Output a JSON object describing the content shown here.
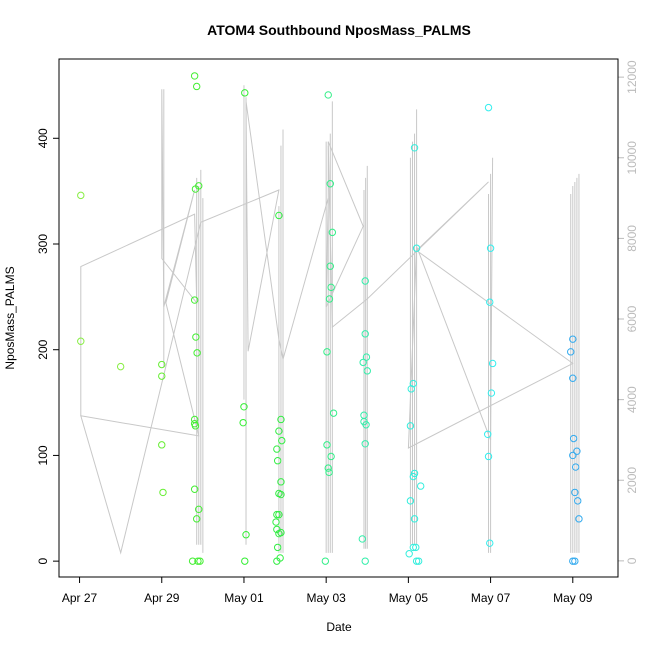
{
  "chart_data": {
    "type": "scatter",
    "title": "ATOM4 Southbound NposMass_PALMS",
    "xlabel": "Date",
    "ylabel": "NposMass_PALMS",
    "x_ticks": [
      {
        "label": "Apr 27",
        "value": 0
      },
      {
        "label": "Apr 29",
        "value": 2
      },
      {
        "label": "May 01",
        "value": 4
      },
      {
        "label": "May 03",
        "value": 6
      },
      {
        "label": "May 05",
        "value": 8
      },
      {
        "label": "May 07",
        "value": 10
      },
      {
        "label": "May 09",
        "value": 12
      }
    ],
    "y_ticks": [
      0,
      100,
      200,
      300,
      400
    ],
    "y2_ticks": [
      0,
      2000,
      4000,
      6000,
      8000,
      10000,
      12000
    ],
    "xlim": [
      -0.5,
      13.1
    ],
    "ylim": [
      -15,
      475
    ],
    "y2lim": [
      -400,
      12450
    ],
    "colors": {
      "axis": "#000000",
      "right_axis": "#bbbbbb",
      "line": "#c8c8c8"
    },
    "scatter_series": [
      {
        "color": "#88ee44",
        "points": [
          [
            0.03,
            346
          ],
          [
            0.03,
            208
          ],
          [
            1.0,
            184
          ]
        ]
      },
      {
        "color": "#66ee33",
        "points": [
          [
            2.0,
            186
          ],
          [
            2.0,
            175
          ],
          [
            2.0,
            110
          ],
          [
            2.03,
            65
          ]
        ]
      },
      {
        "color": "#44ee33",
        "points": [
          [
            2.8,
            459
          ],
          [
            2.85,
            449
          ],
          [
            2.82,
            352
          ],
          [
            2.9,
            355
          ],
          [
            2.8,
            247
          ],
          [
            2.83,
            212
          ],
          [
            2.86,
            197
          ],
          [
            2.8,
            134
          ],
          [
            2.8,
            130
          ],
          [
            2.82,
            128
          ],
          [
            2.8,
            68
          ],
          [
            2.85,
            40
          ],
          [
            2.9,
            49
          ],
          [
            2.75,
            0
          ],
          [
            2.88,
            0
          ],
          [
            2.93,
            0
          ]
        ]
      },
      {
        "color": "#33ee33",
        "points": [
          [
            4.02,
            443
          ],
          [
            4.0,
            146
          ],
          [
            3.98,
            131
          ],
          [
            4.05,
            25
          ],
          [
            4.02,
            0
          ]
        ]
      },
      {
        "color": "#33ee44",
        "points": [
          [
            4.85,
            327
          ],
          [
            4.9,
            134
          ],
          [
            4.85,
            123
          ],
          [
            4.8,
            106
          ],
          [
            4.82,
            95
          ],
          [
            4.92,
            114
          ],
          [
            4.9,
            75
          ],
          [
            4.85,
            64
          ],
          [
            4.9,
            63
          ],
          [
            4.8,
            44
          ],
          [
            4.85,
            44
          ],
          [
            4.78,
            37
          ],
          [
            4.8,
            30
          ],
          [
            4.85,
            26
          ],
          [
            4.9,
            27
          ],
          [
            4.82,
            13
          ],
          [
            4.88,
            3
          ],
          [
            4.8,
            0
          ]
        ]
      },
      {
        "color": "#33ee88",
        "points": [
          [
            6.05,
            441
          ],
          [
            6.1,
            357
          ],
          [
            6.15,
            311
          ],
          [
            6.1,
            279
          ],
          [
            6.12,
            259
          ],
          [
            6.08,
            248
          ],
          [
            6.02,
            198
          ],
          [
            6.18,
            140
          ],
          [
            6.02,
            110
          ],
          [
            6.12,
            99
          ],
          [
            6.05,
            88
          ],
          [
            6.07,
            84
          ],
          [
            5.98,
            0
          ]
        ]
      },
      {
        "color": "#33eeaa",
        "points": [
          [
            6.95,
            265
          ],
          [
            6.95,
            215
          ],
          [
            6.98,
            193
          ],
          [
            7.0,
            180
          ],
          [
            6.9,
            188
          ],
          [
            6.92,
            138
          ],
          [
            6.92,
            132
          ],
          [
            6.97,
            129
          ],
          [
            6.95,
            111
          ],
          [
            6.88,
            21
          ],
          [
            6.95,
            0
          ]
        ]
      },
      {
        "color": "#33eedd",
        "points": [
          [
            8.15,
            391
          ],
          [
            8.2,
            296
          ],
          [
            8.12,
            168
          ],
          [
            8.07,
            163
          ],
          [
            8.05,
            128
          ],
          [
            8.15,
            83
          ],
          [
            8.12,
            80
          ],
          [
            8.3,
            71
          ],
          [
            8.05,
            57
          ],
          [
            8.15,
            40
          ],
          [
            8.12,
            13
          ],
          [
            8.18,
            13
          ],
          [
            8.02,
            7
          ],
          [
            8.2,
            0
          ],
          [
            8.25,
            0
          ]
        ]
      },
      {
        "color": "#33eeee",
        "points": [
          [
            9.95,
            429
          ],
          [
            10.0,
            296
          ],
          [
            9.98,
            245
          ],
          [
            10.05,
            187
          ],
          [
            10.02,
            159
          ],
          [
            9.93,
            120
          ],
          [
            9.95,
            99
          ],
          [
            9.98,
            17
          ]
        ]
      },
      {
        "color": "#33aaee",
        "points": [
          [
            12.0,
            210
          ],
          [
            11.95,
            198
          ],
          [
            12.0,
            173
          ],
          [
            12.02,
            116
          ],
          [
            12.0,
            100
          ],
          [
            12.1,
            104
          ],
          [
            12.07,
            89
          ],
          [
            12.05,
            65
          ],
          [
            12.12,
            57
          ],
          [
            12.15,
            40
          ],
          [
            12.0,
            0
          ],
          [
            12.05,
            0
          ]
        ]
      }
    ],
    "line_series": {
      "color": "#c8c8c8",
      "vertical_spikes": [
        {
          "x": 2.05,
          "lo": 4800,
          "hi": 11700
        },
        {
          "x": 2.85,
          "lo": 400,
          "hi": 9500
        },
        {
          "x": 2.9,
          "lo": 400,
          "hi": 9300
        },
        {
          "x": 2.95,
          "lo": 400,
          "hi": 9700
        },
        {
          "x": 3.0,
          "lo": 200,
          "hi": 9000
        },
        {
          "x": 4.0,
          "lo": 4000,
          "hi": 11800
        },
        {
          "x": 4.05,
          "lo": 400,
          "hi": 11500
        },
        {
          "x": 4.85,
          "lo": 200,
          "hi": 8800
        },
        {
          "x": 4.9,
          "lo": 200,
          "hi": 10300
        },
        {
          "x": 4.95,
          "lo": 200,
          "hi": 10700
        },
        {
          "x": 6.0,
          "lo": 200,
          "hi": 10400
        },
        {
          "x": 6.05,
          "lo": 200,
          "hi": 10300
        },
        {
          "x": 6.1,
          "lo": 200,
          "hi": 10600
        },
        {
          "x": 6.15,
          "lo": 200,
          "hi": 11400
        },
        {
          "x": 6.92,
          "lo": 300,
          "hi": 9200
        },
        {
          "x": 6.96,
          "lo": 300,
          "hi": 9500
        },
        {
          "x": 7.0,
          "lo": 300,
          "hi": 9800
        },
        {
          "x": 8.05,
          "lo": 400,
          "hi": 10000
        },
        {
          "x": 8.1,
          "lo": 400,
          "hi": 10400
        },
        {
          "x": 8.15,
          "lo": 400,
          "hi": 10600
        },
        {
          "x": 8.2,
          "lo": 400,
          "hi": 11200
        },
        {
          "x": 9.95,
          "lo": 200,
          "hi": 9100
        },
        {
          "x": 10.0,
          "lo": 200,
          "hi": 9600
        },
        {
          "x": 11.95,
          "lo": 200,
          "hi": 9100
        },
        {
          "x": 12.0,
          "lo": 200,
          "hi": 9300
        },
        {
          "x": 12.05,
          "lo": 200,
          "hi": 9400
        },
        {
          "x": 12.1,
          "lo": 200,
          "hi": 9500
        },
        {
          "x": 12.15,
          "lo": 200,
          "hi": 9600
        }
      ],
      "path": [
        [
          0.03,
          3600
        ],
        [
          0.03,
          7300
        ],
        [
          2.8,
          8600
        ],
        [
          2.85,
          6400
        ],
        [
          2.0,
          7500
        ],
        [
          2.0,
          11700
        ],
        [
          2.05,
          6300
        ],
        [
          2.8,
          9200
        ],
        [
          2.1,
          6400
        ],
        [
          2.9,
          3100
        ],
        [
          0.03,
          3600
        ],
        [
          1.0,
          200
        ],
        [
          2.95,
          8400
        ],
        [
          4.85,
          9200
        ],
        [
          4.1,
          5200
        ],
        [
          4.05,
          11400
        ],
        [
          4.85,
          5500
        ],
        [
          4.95,
          5000
        ],
        [
          6.05,
          9000
        ],
        [
          6.0,
          6300
        ],
        [
          6.9,
          8300
        ],
        [
          6.05,
          10400
        ],
        [
          6.15,
          5800
        ],
        [
          7.0,
          6500
        ],
        [
          9.95,
          9400
        ],
        [
          8.2,
          7700
        ],
        [
          12.0,
          4900
        ],
        [
          8.0,
          2800
        ],
        [
          8.2,
          7800
        ],
        [
          10.0,
          3000
        ],
        [
          10.05,
          10000
        ]
      ]
    }
  }
}
